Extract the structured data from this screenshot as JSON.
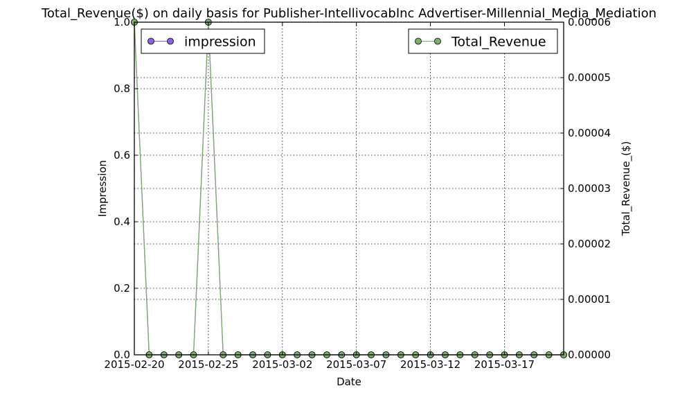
{
  "chart_data": {
    "type": "line",
    "title": "Total_Revenue($) on daily basis for Publisher-IntellivocabInc Advertiser-Millennial_Media_Mediation",
    "xlabel": "Date",
    "ylabel_left": "Impression",
    "ylabel_right": "Total_Revenue_($)",
    "x": [
      "2015-02-20",
      "2015-02-21",
      "2015-02-22",
      "2015-02-23",
      "2015-02-24",
      "2015-02-25",
      "2015-02-26",
      "2015-02-27",
      "2015-02-28",
      "2015-03-01",
      "2015-03-02",
      "2015-03-03",
      "2015-03-04",
      "2015-03-05",
      "2015-03-06",
      "2015-03-07",
      "2015-03-08",
      "2015-03-09",
      "2015-03-10",
      "2015-03-11",
      "2015-03-12",
      "2015-03-13",
      "2015-03-14",
      "2015-03-15",
      "2015-03-16",
      "2015-03-17",
      "2015-03-18",
      "2015-03-19",
      "2015-03-20",
      "2015-03-21"
    ],
    "xlim": [
      "2015-02-20",
      "2015-03-21"
    ],
    "x_ticks": [
      "2015-02-20",
      "2015-02-25",
      "2015-03-02",
      "2015-03-07",
      "2015-03-12",
      "2015-03-17"
    ],
    "ylim_left": [
      0,
      1.0
    ],
    "y_ticks_left": [
      "0.0",
      "0.2",
      "0.4",
      "0.6",
      "0.8",
      "1.0"
    ],
    "ylim_right": [
      0,
      6e-05
    ],
    "y_ticks_right": [
      "0.00000",
      "0.00001",
      "0.00002",
      "0.00003",
      "0.00004",
      "0.00005",
      "0.00006"
    ],
    "grid": true,
    "series": [
      {
        "name": "impression",
        "axis": "left",
        "color": "#8a63e0",
        "values": [
          1,
          0,
          0,
          0,
          0,
          1,
          0,
          0,
          0,
          0,
          0,
          0,
          0,
          0,
          0,
          0,
          0,
          0,
          0,
          0,
          0,
          0,
          0,
          0,
          0,
          0,
          0,
          0,
          0,
          0
        ]
      },
      {
        "name": "Total_Revenue",
        "axis": "right",
        "color": "#7fab6e",
        "values": [
          6e-05,
          0,
          0,
          0,
          0,
          6e-05,
          0,
          0,
          0,
          0,
          0,
          0,
          0,
          0,
          0,
          0,
          0,
          0,
          0,
          0,
          0,
          0,
          0,
          0,
          0,
          0,
          0,
          0,
          0,
          0
        ]
      }
    ],
    "legends": [
      {
        "series": "impression",
        "placement": "top-left"
      },
      {
        "series": "Total_Revenue",
        "placement": "top-right"
      }
    ]
  }
}
